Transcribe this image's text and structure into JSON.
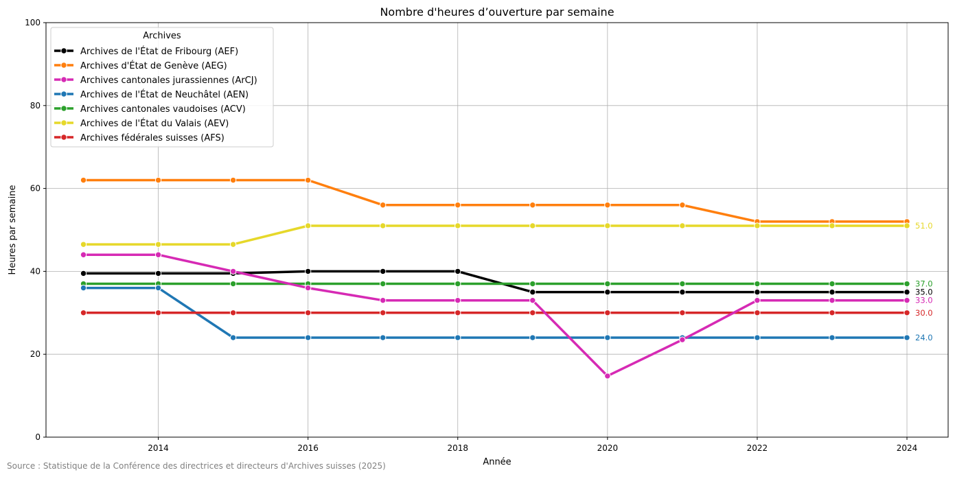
{
  "source": "Source : Statistique de la Conférence des directrices et directeurs d'Archives suisses (2025)",
  "chart_data": {
    "type": "line",
    "title": "Nombre d'heures d’ouverture par semaine",
    "xlabel": "Année",
    "ylabel": "Heures par semaine",
    "xlim": [
      2012.5,
      2024.55
    ],
    "ylim": [
      0,
      100
    ],
    "xticks": [
      2014,
      2016,
      2018,
      2020,
      2022,
      2024
    ],
    "yticks": [
      0,
      20,
      40,
      60,
      80,
      100
    ],
    "grid": true,
    "legend_title": "Archives",
    "legend_position": "top-left",
    "x": [
      2013,
      2014,
      2015,
      2016,
      2017,
      2018,
      2019,
      2020,
      2021,
      2022,
      2023,
      2024
    ],
    "series": [
      {
        "name": "Archives de l'État de Fribourg (AEF)",
        "color": "#000000",
        "values": [
          39.5,
          39.5,
          39.5,
          40,
          40,
          40,
          35,
          35,
          35,
          35,
          35,
          35
        ],
        "end_label": "35.0"
      },
      {
        "name": "Archives d'État de Genève (AEG)",
        "color": "#ff7f0e",
        "values": [
          62,
          62,
          62,
          62,
          56,
          56,
          56,
          56,
          56,
          52,
          52,
          52
        ],
        "end_label": ""
      },
      {
        "name": "Archives cantonales jurassiennes (ArCJ)",
        "color": "#d62ab4",
        "values": [
          44,
          44,
          40,
          36,
          33,
          33,
          33,
          14.75,
          23.5,
          33,
          33,
          33
        ],
        "end_label": "33.0"
      },
      {
        "name": "Archives de l'État de Neuchâtel (AEN)",
        "color": "#1f77b4",
        "values": [
          36,
          36,
          24,
          24,
          24,
          24,
          24,
          24,
          24,
          24,
          24,
          24
        ],
        "end_label": "24.0"
      },
      {
        "name": "Archives cantonales vaudoises (ACV)",
        "color": "#2ca02c",
        "values": [
          37,
          37,
          37,
          37,
          37,
          37,
          37,
          37,
          37,
          37,
          37,
          37
        ],
        "end_label": "37.0"
      },
      {
        "name": "Archives de l'État du Valais (AEV)",
        "color": "#e6d82a",
        "values": [
          46.5,
          46.5,
          46.5,
          51,
          51,
          51,
          51,
          51,
          51,
          51,
          51,
          51
        ],
        "end_label": "51.0"
      },
      {
        "name": "Archives fédérales suisses (AFS)",
        "color": "#d62728",
        "values": [
          30,
          30,
          30,
          30,
          30,
          30,
          30,
          30,
          30,
          30,
          30,
          30
        ],
        "end_label": "30.0"
      }
    ],
    "draw_order": [
      0,
      1,
      5,
      4,
      3,
      6,
      2
    ]
  }
}
